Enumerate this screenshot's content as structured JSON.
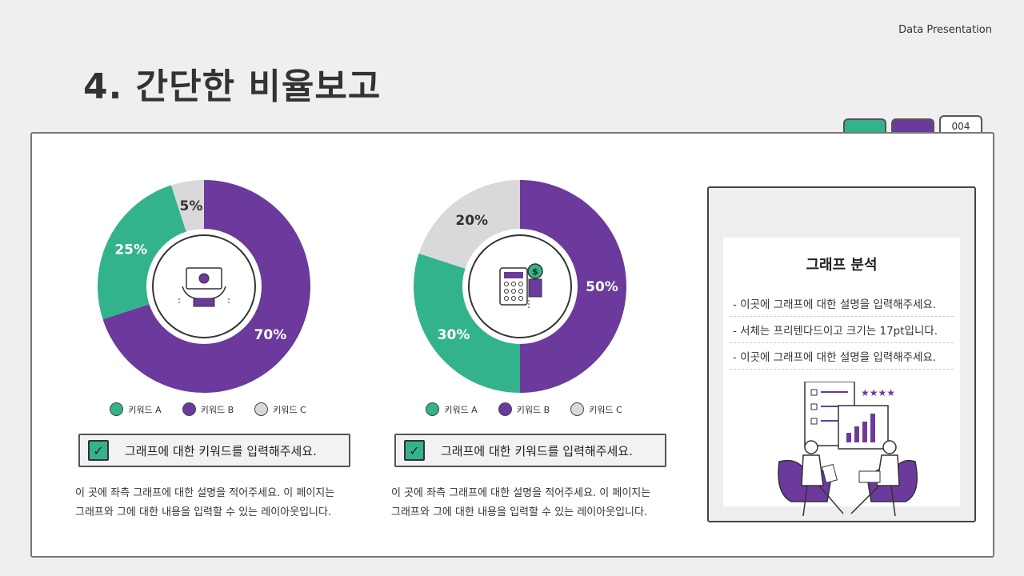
{
  "header": {
    "tag": "Data Presentation",
    "title": "4. 간단한 비율보고"
  },
  "tabs": {
    "page_number": "004"
  },
  "colors": {
    "green": "#33b38c",
    "purple": "#6b3a9c",
    "gray": "#d9d8da"
  },
  "chart_data": [
    {
      "type": "pie",
      "categories": [
        "키워드 A",
        "키워드 B",
        "키워드 C"
      ],
      "values": [
        25,
        70,
        5
      ],
      "labels": [
        "25%",
        "70%",
        "5%"
      ],
      "icon": "money-hands-icon"
    },
    {
      "type": "pie",
      "categories": [
        "키워드 A",
        "키워드 B",
        "키워드 C"
      ],
      "values": [
        30,
        50,
        20
      ],
      "labels": [
        "30%",
        "50%",
        "20%"
      ],
      "icon": "calculator-coins-icon"
    }
  ],
  "blocks": [
    {
      "keyword": "그래프에 대한 키워드를 입력해주세요.",
      "desc_line1": "이 곳에 좌측 그래프에 대한 설명을 적어주세요. 이 페이지는",
      "desc_line2": "그래프와 그에 대한 내용을 입력할 수 있는 레이아웃입니다."
    },
    {
      "keyword": "그래프에 대한 키워드를 입력해주세요.",
      "desc_line1": "이 곳에 좌측 그래프에 대한 설명을 적어주세요. 이 페이지는",
      "desc_line2": "그래프와 그에 대한 내용을 입력할 수 있는 레이아웃입니다."
    }
  ],
  "analysis": {
    "title": "그래프 분석",
    "lines": [
      "- 이곳에 그래프에 대한 설명을 입력해주세요.",
      "- 서체는 프리텐다드이고 크기는 17pt입니다.",
      "- 이곳에 그래프에 대한 설명을 입력해주세요."
    ]
  }
}
